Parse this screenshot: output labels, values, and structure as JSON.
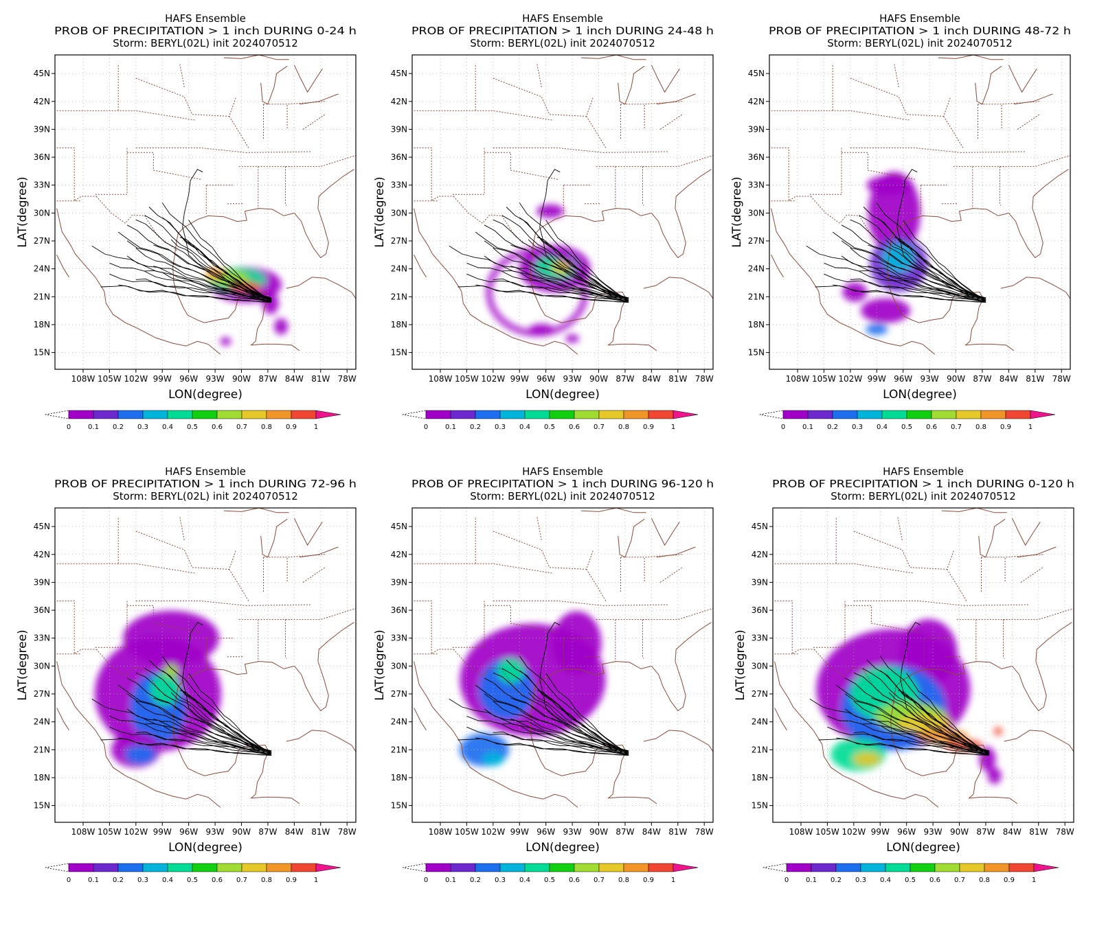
{
  "figure": {
    "model_title": "HAFS Ensemble",
    "storm_line": "Storm: BERYL(02L) init 2024070512",
    "xlabel": "LON(degree)",
    "ylabel": "LAT(degree)",
    "lat_ticks": [
      "45N",
      "42N",
      "39N",
      "36N",
      "33N",
      "30N",
      "27N",
      "24N",
      "21N",
      "18N",
      "15N"
    ],
    "lon_ticks": [
      "108W",
      "105W",
      "102W",
      "99W",
      "96W",
      "93W",
      "90W",
      "87W",
      "84W",
      "81W",
      "78W"
    ],
    "colorbar_ticks": [
      "0",
      "0.1",
      "0.2",
      "0.3",
      "0.4",
      "0.5",
      "0.6",
      "0.7",
      "0.8",
      "0.9",
      "1"
    ],
    "colorbar_colors": [
      "#a000c8",
      "#6e28d0",
      "#1e6ef0",
      "#00b4dc",
      "#00dc96",
      "#10d010",
      "#a0dc32",
      "#e6c828",
      "#f09628",
      "#f04632",
      "#f0148c"
    ],
    "colors": {
      "border": "#8b4a3a",
      "track": "#000000",
      "grid": "#b0b0b0"
    }
  },
  "panels": [
    {
      "id": "p1",
      "title": "PROB OF PRECIPITATION > 1 inch DURING  0-24 h"
    },
    {
      "id": "p2",
      "title": "PROB OF PRECIPITATION > 1 inch DURING 24-48 h"
    },
    {
      "id": "p3",
      "title": "PROB OF PRECIPITATION > 1 inch DURING 48-72 h"
    },
    {
      "id": "p4",
      "title": "PROB OF PRECIPITATION > 1 inch DURING 72-96 h"
    },
    {
      "id": "p5",
      "title": "PROB OF PRECIPITATION > 1 inch DURING 96-120 h"
    },
    {
      "id": "p6",
      "title": "PROB OF PRECIPITATION > 1 inch DURING 0-120 h"
    }
  ]
}
